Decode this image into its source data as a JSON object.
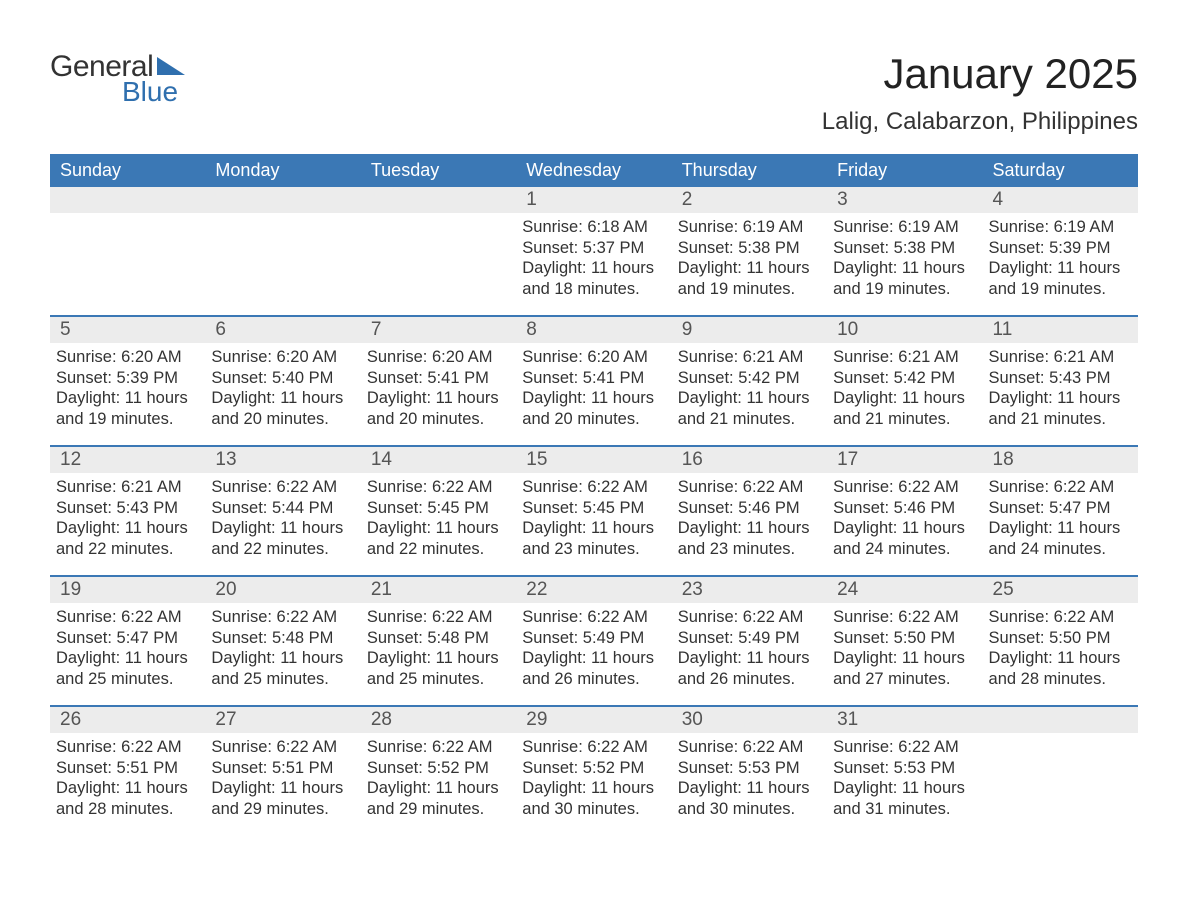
{
  "logo": {
    "word1": "General",
    "word2": "Blue"
  },
  "title": "January 2025",
  "location": "Lalig, Calabarzon, Philippines",
  "colors": {
    "header_bg": "#3b78b5",
    "header_text": "#ffffff",
    "row_divider": "#3b78b5",
    "daynum_bg": "#ececec",
    "page_bg": "#ffffff",
    "logo_accent": "#2f6fae"
  },
  "day_names": [
    "Sunday",
    "Monday",
    "Tuesday",
    "Wednesday",
    "Thursday",
    "Friday",
    "Saturday"
  ],
  "weeks": [
    [
      {
        "n": "",
        "sunrise": "",
        "sunset": "",
        "daylight": ""
      },
      {
        "n": "",
        "sunrise": "",
        "sunset": "",
        "daylight": ""
      },
      {
        "n": "",
        "sunrise": "",
        "sunset": "",
        "daylight": ""
      },
      {
        "n": "1",
        "sunrise": "Sunrise: 6:18 AM",
        "sunset": "Sunset: 5:37 PM",
        "daylight": "Daylight: 11 hours and 18 minutes."
      },
      {
        "n": "2",
        "sunrise": "Sunrise: 6:19 AM",
        "sunset": "Sunset: 5:38 PM",
        "daylight": "Daylight: 11 hours and 19 minutes."
      },
      {
        "n": "3",
        "sunrise": "Sunrise: 6:19 AM",
        "sunset": "Sunset: 5:38 PM",
        "daylight": "Daylight: 11 hours and 19 minutes."
      },
      {
        "n": "4",
        "sunrise": "Sunrise: 6:19 AM",
        "sunset": "Sunset: 5:39 PM",
        "daylight": "Daylight: 11 hours and 19 minutes."
      }
    ],
    [
      {
        "n": "5",
        "sunrise": "Sunrise: 6:20 AM",
        "sunset": "Sunset: 5:39 PM",
        "daylight": "Daylight: 11 hours and 19 minutes."
      },
      {
        "n": "6",
        "sunrise": "Sunrise: 6:20 AM",
        "sunset": "Sunset: 5:40 PM",
        "daylight": "Daylight: 11 hours and 20 minutes."
      },
      {
        "n": "7",
        "sunrise": "Sunrise: 6:20 AM",
        "sunset": "Sunset: 5:41 PM",
        "daylight": "Daylight: 11 hours and 20 minutes."
      },
      {
        "n": "8",
        "sunrise": "Sunrise: 6:20 AM",
        "sunset": "Sunset: 5:41 PM",
        "daylight": "Daylight: 11 hours and 20 minutes."
      },
      {
        "n": "9",
        "sunrise": "Sunrise: 6:21 AM",
        "sunset": "Sunset: 5:42 PM",
        "daylight": "Daylight: 11 hours and 21 minutes."
      },
      {
        "n": "10",
        "sunrise": "Sunrise: 6:21 AM",
        "sunset": "Sunset: 5:42 PM",
        "daylight": "Daylight: 11 hours and 21 minutes."
      },
      {
        "n": "11",
        "sunrise": "Sunrise: 6:21 AM",
        "sunset": "Sunset: 5:43 PM",
        "daylight": "Daylight: 11 hours and 21 minutes."
      }
    ],
    [
      {
        "n": "12",
        "sunrise": "Sunrise: 6:21 AM",
        "sunset": "Sunset: 5:43 PM",
        "daylight": "Daylight: 11 hours and 22 minutes."
      },
      {
        "n": "13",
        "sunrise": "Sunrise: 6:22 AM",
        "sunset": "Sunset: 5:44 PM",
        "daylight": "Daylight: 11 hours and 22 minutes."
      },
      {
        "n": "14",
        "sunrise": "Sunrise: 6:22 AM",
        "sunset": "Sunset: 5:45 PM",
        "daylight": "Daylight: 11 hours and 22 minutes."
      },
      {
        "n": "15",
        "sunrise": "Sunrise: 6:22 AM",
        "sunset": "Sunset: 5:45 PM",
        "daylight": "Daylight: 11 hours and 23 minutes."
      },
      {
        "n": "16",
        "sunrise": "Sunrise: 6:22 AM",
        "sunset": "Sunset: 5:46 PM",
        "daylight": "Daylight: 11 hours and 23 minutes."
      },
      {
        "n": "17",
        "sunrise": "Sunrise: 6:22 AM",
        "sunset": "Sunset: 5:46 PM",
        "daylight": "Daylight: 11 hours and 24 minutes."
      },
      {
        "n": "18",
        "sunrise": "Sunrise: 6:22 AM",
        "sunset": "Sunset: 5:47 PM",
        "daylight": "Daylight: 11 hours and 24 minutes."
      }
    ],
    [
      {
        "n": "19",
        "sunrise": "Sunrise: 6:22 AM",
        "sunset": "Sunset: 5:47 PM",
        "daylight": "Daylight: 11 hours and 25 minutes."
      },
      {
        "n": "20",
        "sunrise": "Sunrise: 6:22 AM",
        "sunset": "Sunset: 5:48 PM",
        "daylight": "Daylight: 11 hours and 25 minutes."
      },
      {
        "n": "21",
        "sunrise": "Sunrise: 6:22 AM",
        "sunset": "Sunset: 5:48 PM",
        "daylight": "Daylight: 11 hours and 25 minutes."
      },
      {
        "n": "22",
        "sunrise": "Sunrise: 6:22 AM",
        "sunset": "Sunset: 5:49 PM",
        "daylight": "Daylight: 11 hours and 26 minutes."
      },
      {
        "n": "23",
        "sunrise": "Sunrise: 6:22 AM",
        "sunset": "Sunset: 5:49 PM",
        "daylight": "Daylight: 11 hours and 26 minutes."
      },
      {
        "n": "24",
        "sunrise": "Sunrise: 6:22 AM",
        "sunset": "Sunset: 5:50 PM",
        "daylight": "Daylight: 11 hours and 27 minutes."
      },
      {
        "n": "25",
        "sunrise": "Sunrise: 6:22 AM",
        "sunset": "Sunset: 5:50 PM",
        "daylight": "Daylight: 11 hours and 28 minutes."
      }
    ],
    [
      {
        "n": "26",
        "sunrise": "Sunrise: 6:22 AM",
        "sunset": "Sunset: 5:51 PM",
        "daylight": "Daylight: 11 hours and 28 minutes."
      },
      {
        "n": "27",
        "sunrise": "Sunrise: 6:22 AM",
        "sunset": "Sunset: 5:51 PM",
        "daylight": "Daylight: 11 hours and 29 minutes."
      },
      {
        "n": "28",
        "sunrise": "Sunrise: 6:22 AM",
        "sunset": "Sunset: 5:52 PM",
        "daylight": "Daylight: 11 hours and 29 minutes."
      },
      {
        "n": "29",
        "sunrise": "Sunrise: 6:22 AM",
        "sunset": "Sunset: 5:52 PM",
        "daylight": "Daylight: 11 hours and 30 minutes."
      },
      {
        "n": "30",
        "sunrise": "Sunrise: 6:22 AM",
        "sunset": "Sunset: 5:53 PM",
        "daylight": "Daylight: 11 hours and 30 minutes."
      },
      {
        "n": "31",
        "sunrise": "Sunrise: 6:22 AM",
        "sunset": "Sunset: 5:53 PM",
        "daylight": "Daylight: 11 hours and 31 minutes."
      },
      {
        "n": "",
        "sunrise": "",
        "sunset": "",
        "daylight": ""
      }
    ]
  ]
}
